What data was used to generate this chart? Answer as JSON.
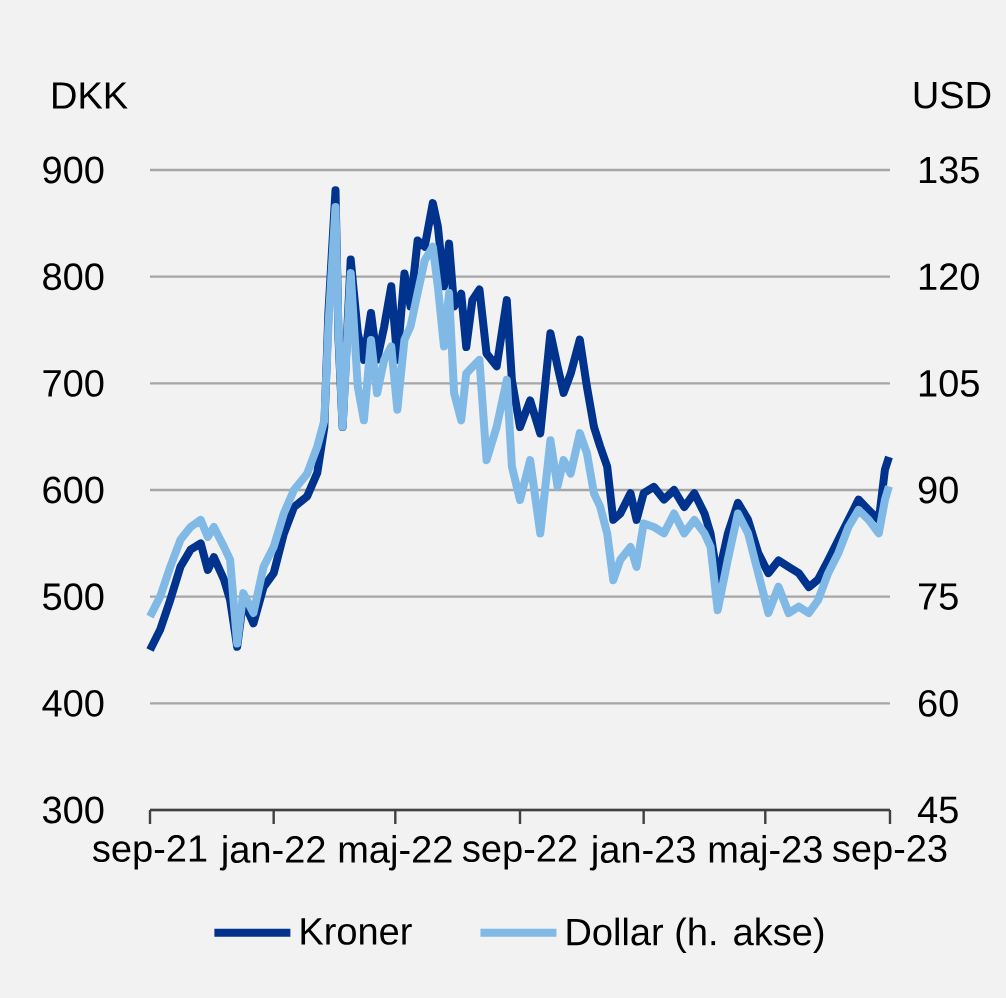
{
  "chart_data": {
    "type": "line",
    "ylabel": "DKK",
    "y2label": "USD",
    "x": [
      "2021-09-01",
      "2021-09-11",
      "2021-09-21",
      "2021-10-01",
      "2021-10-11",
      "2021-10-21",
      "2021-10-28",
      "2021-11-03",
      "2021-11-13",
      "2021-11-19",
      "2021-11-26",
      "2021-12-02",
      "2021-12-12",
      "2021-12-22",
      "2022-01-01",
      "2022-01-11",
      "2022-01-21",
      "2022-02-03",
      "2022-02-13",
      "2022-02-20",
      "2022-02-24",
      "2022-03-03",
      "2022-03-06",
      "2022-03-10",
      "2022-03-18",
      "2022-03-25",
      "2022-03-31",
      "2022-04-07",
      "2022-04-13",
      "2022-04-20",
      "2022-04-27",
      "2022-05-03",
      "2022-05-10",
      "2022-05-16",
      "2022-05-23",
      "2022-05-30",
      "2022-06-07",
      "2022-06-12",
      "2022-06-18",
      "2022-06-23",
      "2022-06-28",
      "2022-07-05",
      "2022-07-10",
      "2022-07-16",
      "2022-07-23",
      "2022-07-30",
      "2022-08-09",
      "2022-08-19",
      "2022-08-24",
      "2022-09-01",
      "2022-09-11",
      "2022-09-21",
      "2022-10-01",
      "2022-10-08",
      "2022-10-14",
      "2022-10-21",
      "2022-10-30",
      "2022-11-06",
      "2022-11-13",
      "2022-11-19",
      "2022-11-26",
      "2022-12-02",
      "2022-12-09",
      "2022-12-19",
      "2022-12-25",
      "2023-01-01",
      "2023-01-11",
      "2023-01-21",
      "2023-01-31",
      "2023-02-10",
      "2023-02-20",
      "2023-03-02",
      "2023-03-08",
      "2023-03-15",
      "2023-03-25",
      "2023-04-04",
      "2023-04-14",
      "2023-04-24",
      "2023-05-04",
      "2023-05-14",
      "2023-05-24",
      "2023-06-03",
      "2023-06-13",
      "2023-06-22",
      "2023-07-02",
      "2023-07-12",
      "2023-07-22",
      "2023-08-01",
      "2023-08-11",
      "2023-08-21",
      "2023-08-27",
      "2023-08-31"
    ],
    "xlim": [
      "2021-09-01",
      "2023-09-01"
    ],
    "xticks": [
      {
        "value": "2021-09-01",
        "label": "sep-21"
      },
      {
        "value": "2022-01-01",
        "label": "jan-22"
      },
      {
        "value": "2022-05-01",
        "label": "maj-22"
      },
      {
        "value": "2022-09-01",
        "label": "sep-22"
      },
      {
        "value": "2023-01-01",
        "label": "jan-23"
      },
      {
        "value": "2023-05-01",
        "label": "maj-23"
      },
      {
        "value": "2023-09-01",
        "label": "sep-23"
      }
    ],
    "ylim": [
      300,
      900
    ],
    "yticks": [
      300,
      400,
      500,
      600,
      700,
      800,
      900
    ],
    "y2lim": [
      45,
      135
    ],
    "y2ticks": [
      45,
      60,
      75,
      90,
      105,
      120,
      135
    ],
    "grid": "y",
    "legend": "bottom",
    "series": [
      {
        "name": "Kroner",
        "color": "#00338D",
        "values": [
          450,
          469,
          497,
          528,
          544,
          550,
          525,
          537,
          516,
          497,
          453,
          497,
          475,
          509,
          522,
          559,
          584,
          594,
          616,
          659,
          766,
          881,
          741,
          659,
          816,
          747,
          722,
          766,
          722,
          753,
          791,
          722,
          803,
          772,
          834,
          828,
          869,
          847,
          791,
          831,
          772,
          784,
          734,
          778,
          788,
          728,
          716,
          778,
          703,
          659,
          684,
          653,
          747,
          716,
          691,
          709,
          741,
          697,
          659,
          641,
          622,
          572,
          578,
          597,
          572,
          597,
          603,
          591,
          600,
          584,
          597,
          578,
          559,
          516,
          559,
          588,
          572,
          541,
          522,
          534,
          528,
          522,
          509,
          516,
          534,
          553,
          572,
          591,
          581,
          572,
          619,
          631
        ]
      },
      {
        "name": "Dollar (h. akse)",
        "color": "#80B9E6",
        "axis": "y2",
        "values": [
          72.2,
          75.0,
          79.2,
          83.0,
          84.8,
          85.8,
          83.4,
          84.8,
          82.0,
          80.2,
          68.4,
          75.5,
          72.7,
          79.2,
          82.0,
          86.7,
          90.0,
          92.3,
          96.1,
          99.8,
          113.0,
          129.8,
          112.0,
          98.9,
          120.5,
          104.5,
          99.8,
          111.1,
          103.6,
          108.3,
          110.2,
          101.3,
          111.1,
          113.0,
          117.7,
          122.3,
          124.2,
          118.6,
          110.2,
          117.7,
          103.6,
          99.8,
          106.4,
          107.3,
          108.3,
          94.2,
          98.9,
          105.5,
          93.3,
          88.6,
          94.2,
          83.9,
          97.0,
          90.5,
          94.2,
          92.3,
          98.0,
          95.2,
          89.5,
          87.7,
          83.9,
          77.3,
          80.2,
          82.0,
          79.2,
          85.3,
          84.8,
          83.9,
          86.7,
          83.9,
          85.8,
          83.9,
          82.0,
          73.1,
          80.2,
          86.7,
          83.9,
          78.3,
          72.7,
          76.4,
          72.7,
          73.6,
          72.7,
          74.5,
          78.3,
          81.1,
          84.8,
          87.2,
          85.8,
          83.9,
          88.6,
          90.5
        ]
      }
    ]
  }
}
